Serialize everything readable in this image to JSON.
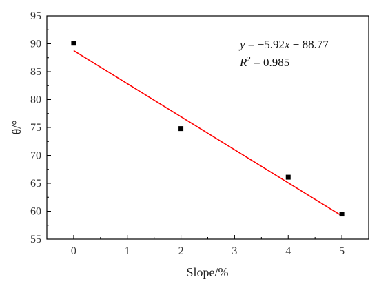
{
  "chart_data": {
    "type": "scatter",
    "title": "",
    "xlabel": "Slope/%",
    "ylabel": "θ/°",
    "xlim": [
      -0.5,
      5.5
    ],
    "ylim": [
      55,
      95
    ],
    "xticks": [
      0,
      1,
      2,
      3,
      4,
      5
    ],
    "yticks": [
      55,
      60,
      65,
      70,
      75,
      80,
      85,
      90,
      95
    ],
    "grid": false,
    "series": [
      {
        "kind": "scatter",
        "marker": "square",
        "color": "#000000",
        "x": [
          0,
          2,
          4,
          5
        ],
        "y": [
          90.1,
          74.8,
          66.1,
          59.5
        ]
      },
      {
        "kind": "line",
        "color": "#ff0000",
        "x": [
          0,
          5
        ],
        "y": [
          88.77,
          59.17
        ]
      }
    ],
    "annotation": {
      "equation_prefix": "y",
      "equation_rest": " = −5.92",
      "equation_x": "x",
      "equation_tail": " + 88.77",
      "r2_prefix": "R",
      "r2_sup": "2",
      "r2_value": " = 0.985"
    }
  }
}
